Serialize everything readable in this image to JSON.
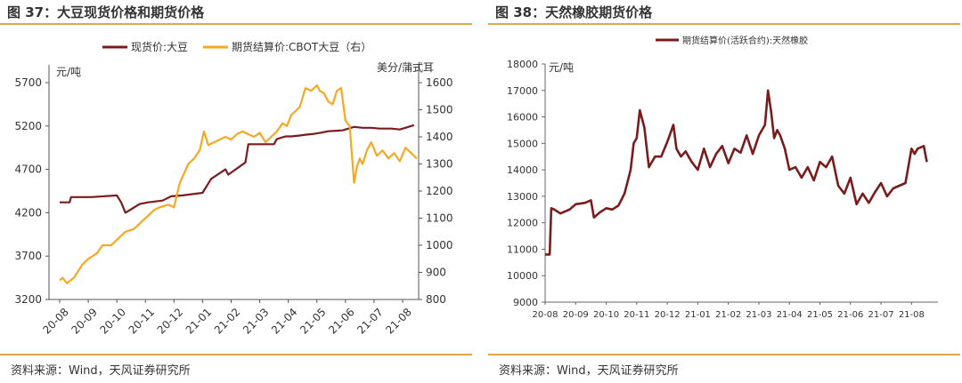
{
  "source_note": "资料来源：Wind，天风证券研究所",
  "colors": {
    "rule": "#e3a44a",
    "soy_spot": "#7b1c1c",
    "cbot": "#f7a823",
    "rubber": "#7b1c1c"
  },
  "chart_data": [
    {
      "figure_title": "图 37：大豆现货价格和期货价格",
      "type": "line",
      "x_ticks": [
        "20-08",
        "20-09",
        "20-10",
        "20-11",
        "20-12",
        "21-01",
        "21-02",
        "21-03",
        "21-04",
        "21-05",
        "21-06",
        "21-07",
        "21-08"
      ],
      "left_unit": "元/吨",
      "right_unit": "美分/蒲式耳",
      "ylim_left": [
        3200,
        5700
      ],
      "ylim_right": [
        800,
        1600
      ],
      "yticks_left": [
        "3200",
        "3700",
        "4200",
        "4700",
        "5200",
        "5700"
      ],
      "yticks_right": [
        "800",
        "900",
        "1000",
        "1100",
        "1200",
        "1300",
        "1400",
        "1500",
        "1600"
      ],
      "grid": false,
      "legend_position": "top",
      "series": [
        {
          "name": "现货价:大豆",
          "axis": "left",
          "color": "#7b1c1c",
          "x": [
            0,
            0.35,
            0.4,
            1.1,
            2.0,
            2.15,
            2.3,
            2.5,
            2.8,
            3.1,
            3.6,
            3.9,
            4.3,
            5.0,
            5.3,
            5.8,
            5.9,
            6.5,
            6.6,
            7.5,
            7.6,
            7.9,
            8.1,
            8.4,
            8.6,
            8.9,
            9.1,
            9.4,
            9.9,
            10.0,
            10.3,
            10.6,
            10.9,
            11.2,
            11.6,
            11.9,
            12.1,
            12.4
          ],
          "y": [
            4320,
            4320,
            4380,
            4380,
            4400,
            4320,
            4200,
            4240,
            4300,
            4320,
            4340,
            4390,
            4400,
            4430,
            4590,
            4700,
            4640,
            4780,
            4990,
            4990,
            5050,
            5080,
            5080,
            5090,
            5100,
            5110,
            5120,
            5140,
            5150,
            5160,
            5190,
            5180,
            5180,
            5170,
            5170,
            5160,
            5180,
            5210
          ]
        },
        {
          "name": "期货结算价:CBOT大豆（右）",
          "axis": "right",
          "color": "#f7a823",
          "x": [
            0,
            0.1,
            0.25,
            0.5,
            0.8,
            1.0,
            1.3,
            1.5,
            1.8,
            2.0,
            2.3,
            2.6,
            2.9,
            3.3,
            3.5,
            3.8,
            4.0,
            4.2,
            4.5,
            4.7,
            4.9,
            5.05,
            5.2,
            5.4,
            5.6,
            5.8,
            6.0,
            6.2,
            6.4,
            6.6,
            6.8,
            7.0,
            7.2,
            7.4,
            7.6,
            7.8,
            7.95,
            8.1,
            8.4,
            8.6,
            8.8,
            9.0,
            9.1,
            9.25,
            9.4,
            9.55,
            9.7,
            9.85,
            10.0,
            10.15,
            10.3,
            10.4,
            10.5,
            10.6,
            10.75,
            10.9,
            11.1,
            11.3,
            11.5,
            11.7,
            11.9,
            12.1,
            12.3,
            12.5
          ],
          "y": [
            870,
            880,
            860,
            880,
            930,
            950,
            970,
            1000,
            1000,
            1020,
            1050,
            1060,
            1090,
            1130,
            1140,
            1150,
            1140,
            1230,
            1300,
            1320,
            1350,
            1420,
            1370,
            1380,
            1390,
            1400,
            1390,
            1410,
            1420,
            1410,
            1400,
            1415,
            1380,
            1400,
            1420,
            1450,
            1440,
            1480,
            1510,
            1580,
            1570,
            1590,
            1570,
            1560,
            1530,
            1520,
            1570,
            1580,
            1460,
            1440,
            1230,
            1290,
            1320,
            1300,
            1350,
            1380,
            1330,
            1350,
            1320,
            1340,
            1310,
            1360,
            1340,
            1320
          ]
        }
      ]
    },
    {
      "figure_title": "图 38：天然橡胶期货价格",
      "type": "line",
      "x_ticks": [
        "20-08",
        "20-09",
        "20-10",
        "20-11",
        "20-12",
        "21-01",
        "21-02",
        "21-03",
        "21-04",
        "21-05",
        "21-06",
        "21-07",
        "21-08"
      ],
      "left_unit": "元/吨",
      "ylim": [
        9000,
        18000
      ],
      "yticks": [
        "9000",
        "10000",
        "11000",
        "12000",
        "13000",
        "14000",
        "15000",
        "16000",
        "17000",
        "18000"
      ],
      "grid": false,
      "legend_position": "top",
      "series": [
        {
          "name": "期货结算价(活跃合约):天然橡胶",
          "color": "#7b1c1c",
          "x": [
            0,
            0.15,
            0.2,
            0.3,
            0.5,
            0.8,
            1.0,
            1.3,
            1.5,
            1.6,
            1.8,
            2.0,
            2.2,
            2.4,
            2.6,
            2.8,
            2.9,
            3.0,
            3.1,
            3.25,
            3.4,
            3.6,
            3.8,
            4.0,
            4.2,
            4.3,
            4.45,
            4.6,
            4.8,
            5.0,
            5.2,
            5.4,
            5.6,
            5.8,
            6.0,
            6.2,
            6.4,
            6.6,
            6.8,
            7.0,
            7.2,
            7.3,
            7.4,
            7.5,
            7.6,
            7.7,
            7.85,
            8.0,
            8.2,
            8.4,
            8.6,
            8.8,
            9.0,
            9.2,
            9.4,
            9.6,
            9.8,
            10.0,
            10.2,
            10.4,
            10.6,
            10.8,
            11.0,
            11.2,
            11.4,
            11.6,
            11.8,
            12.0,
            12.1,
            12.2,
            12.4,
            12.5
          ],
          "y": [
            10800,
            10800,
            12550,
            12500,
            12350,
            12500,
            12700,
            12750,
            12850,
            12200,
            12400,
            12550,
            12500,
            12650,
            13100,
            14000,
            15000,
            15200,
            16250,
            15600,
            14100,
            14500,
            14500,
            15050,
            15700,
            14800,
            14500,
            14700,
            14300,
            14000,
            14800,
            14100,
            14600,
            14900,
            14250,
            14800,
            14650,
            15300,
            14600,
            15300,
            15700,
            17000,
            16200,
            15200,
            15500,
            15300,
            14800,
            14000,
            14100,
            13700,
            14100,
            13600,
            14300,
            14100,
            14500,
            13400,
            13100,
            13700,
            12700,
            13100,
            12750,
            13150,
            13500,
            13000,
            13300,
            13400,
            13500,
            14800,
            14600,
            14800,
            14900,
            14300
          ]
        }
      ]
    }
  ]
}
